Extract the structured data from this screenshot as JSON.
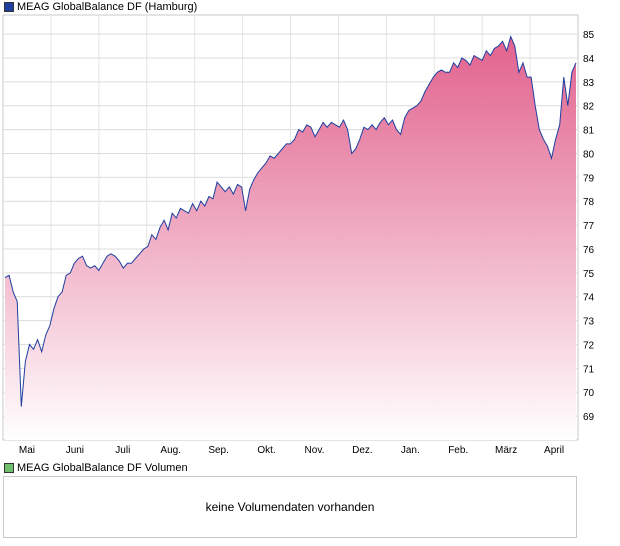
{
  "legend": {
    "price_label": "MEAG GlobalBalance DF (Hamburg)",
    "price_color": "#1f3f9f",
    "volume_label": "MEAG GlobalBalance DF Volumen",
    "volume_color": "#6fbf6f"
  },
  "volume": {
    "message": "keine Volumendaten vorhanden"
  },
  "chart_data": {
    "type": "area",
    "title": "MEAG GlobalBalance DF (Hamburg)",
    "xlabel": "",
    "ylabel": "",
    "ylim": [
      68,
      85.8
    ],
    "y_ticks": [
      69,
      70,
      71,
      72,
      73,
      74,
      75,
      76,
      77,
      78,
      79,
      80,
      81,
      82,
      83,
      84,
      85
    ],
    "x_ticks": [
      "Mai",
      "Juni",
      "Juli",
      "Aug.",
      "Sep.",
      "Okt.",
      "Nov.",
      "Dez.",
      "Jan.",
      "Feb.",
      "März",
      "April"
    ],
    "grid": true,
    "line_color": "#1f3f9f",
    "fill_top_color": "#e05a88",
    "fill_bottom_color": "#ffffff",
    "series": [
      {
        "name": "MEAG GlobalBalance DF (Hamburg)",
        "values": [
          74.8,
          74.9,
          74.2,
          73.8,
          69.4,
          71.3,
          72.0,
          71.8,
          72.2,
          71.7,
          72.4,
          72.8,
          73.5,
          74.0,
          74.2,
          74.9,
          75.0,
          75.4,
          75.6,
          75.7,
          75.3,
          75.2,
          75.3,
          75.1,
          75.4,
          75.7,
          75.8,
          75.7,
          75.5,
          75.2,
          75.4,
          75.4,
          75.6,
          75.8,
          76.0,
          76.1,
          76.6,
          76.4,
          76.9,
          77.2,
          76.8,
          77.5,
          77.3,
          77.7,
          77.6,
          77.5,
          77.9,
          77.6,
          78.0,
          77.8,
          78.2,
          78.1,
          78.8,
          78.6,
          78.4,
          78.6,
          78.3,
          78.7,
          78.6,
          77.6,
          78.5,
          78.9,
          79.2,
          79.4,
          79.6,
          79.9,
          79.8,
          80.0,
          80.2,
          80.4,
          80.4,
          80.6,
          81.0,
          80.9,
          81.2,
          81.1,
          80.7,
          81.0,
          81.3,
          81.1,
          81.3,
          81.2,
          81.1,
          81.4,
          81.0,
          80.0,
          80.2,
          80.6,
          81.1,
          81.0,
          81.2,
          81.0,
          81.3,
          81.5,
          81.2,
          81.4,
          81.0,
          80.8,
          81.5,
          81.8,
          81.9,
          82.0,
          82.2,
          82.6,
          82.9,
          83.2,
          83.4,
          83.5,
          83.4,
          83.4,
          83.8,
          83.6,
          84.0,
          83.9,
          83.7,
          84.1,
          84.0,
          83.9,
          84.3,
          84.1,
          84.4,
          84.5,
          84.7,
          84.3,
          84.9,
          84.5,
          83.4,
          83.8,
          83.2,
          83.2,
          82.0,
          81.0,
          80.6,
          80.3,
          79.8,
          80.6,
          81.2,
          83.2,
          82.0,
          83.4,
          83.8
        ]
      }
    ]
  }
}
